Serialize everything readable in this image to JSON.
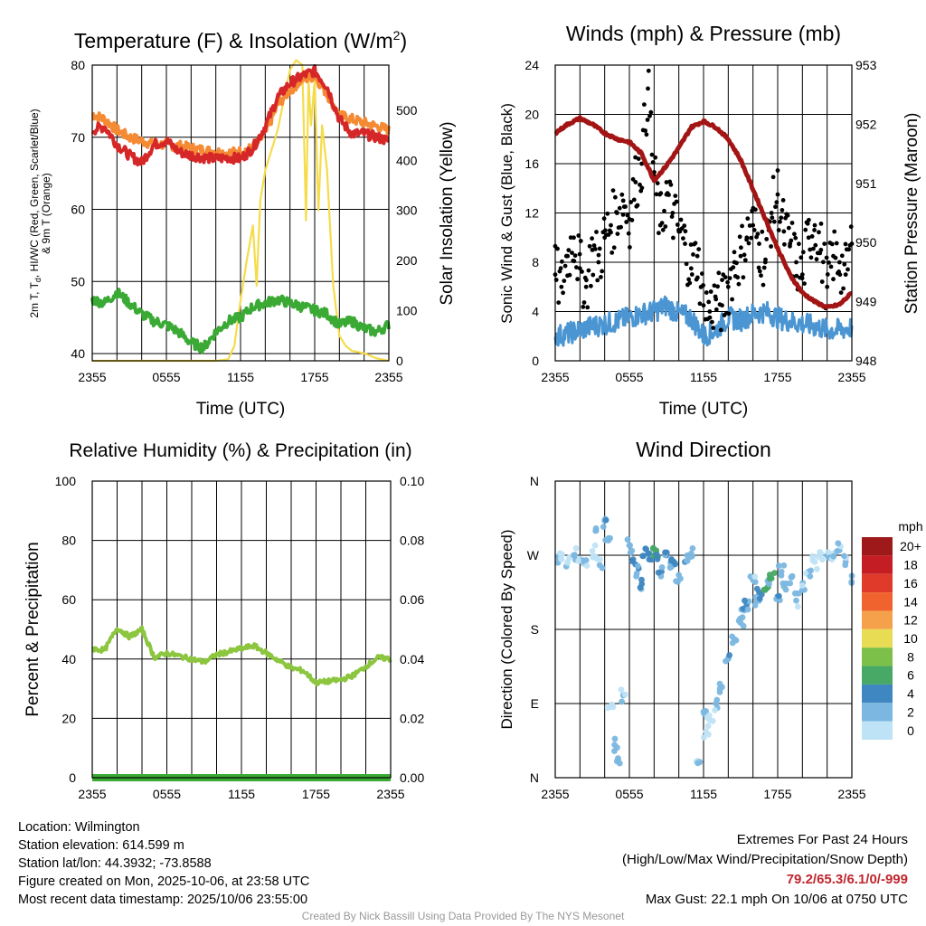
{
  "panels": {
    "temp": {
      "title": "Temperature (F) & Insolation (W/m²)",
      "title_main": "Temperature (F) & Insolation (W/m",
      "title_sup": "2",
      "title_end": ")",
      "ylabel_left": [
        "2m T, T",
        "d",
        ", HI/WC (Red, Green, Scarlet/Blue)",
        "& 9m T (Orange)"
      ],
      "ylabel_right": "Solar Insolation (Yellow)",
      "xlabel": "Time (UTC)"
    },
    "wind": {
      "title": "Winds (mph) & Pressure (mb)",
      "ylabel_left": "Sonic Wind & Gust (Blue, Black)",
      "ylabel_right": "Station Pressure (Maroon)",
      "xlabel": "Time (UTC)"
    },
    "rh": {
      "title": "Relative Humidity (%) & Precipitation (in)",
      "ylabel_left": "Percent & Precipitation"
    },
    "dir": {
      "title": "Wind Direction",
      "ylabel_left": "Direction (Colored By Speed)",
      "colorbar_title": "mph",
      "colorbar_labels": [
        "20+",
        "18",
        "16",
        "14",
        "12",
        "10",
        "8",
        "6",
        "4",
        "2",
        "0"
      ],
      "colorbar_colors": [
        "#9e1a1a",
        "#c41e24",
        "#e03a2b",
        "#f0632f",
        "#f5a04a",
        "#e8dc55",
        "#7cc04a",
        "#48a865",
        "#3f87c0",
        "#7bb7e0",
        "#bfe3f6"
      ]
    }
  },
  "x_ticks": [
    "2355",
    "0555",
    "1155",
    "1755",
    "2355"
  ],
  "chart_data": [
    {
      "type": "line",
      "title": "Temperature (F) & Insolation (W/m2)",
      "xlabel": "Time (UTC)",
      "x_ticks": [
        "2355",
        "0555",
        "1155",
        "1755",
        "2355"
      ],
      "ylim": [
        39,
        80
      ],
      "yticks": [
        40,
        50,
        60,
        70,
        80
      ],
      "y2lim": [
        0,
        590
      ],
      "y2ticks": [
        0,
        100,
        200,
        300,
        400,
        500
      ],
      "series": [
        {
          "name": "9m T (Orange)",
          "color": "#f58a34",
          "axis": "left",
          "t": [
            0,
            1,
            2,
            3,
            4,
            5,
            6,
            7,
            8,
            9,
            10,
            11,
            12,
            13,
            14,
            15,
            16,
            17,
            18,
            19,
            20,
            21,
            22,
            23,
            24
          ],
          "values": [
            73.2,
            72.5,
            71.0,
            70.0,
            69.5,
            69.0,
            69.0,
            68.8,
            68.5,
            68.2,
            68.0,
            67.8,
            68.0,
            68.5,
            70.5,
            74.5,
            76.5,
            78.0,
            78.5,
            76.0,
            73.0,
            72.5,
            72.0,
            71.5,
            71.0
          ]
        },
        {
          "name": "2m T (Red)",
          "color": "#d62728",
          "axis": "left",
          "t": [
            0,
            1,
            2,
            3,
            4,
            5,
            6,
            7,
            8,
            9,
            10,
            11,
            12,
            13,
            14,
            15,
            16,
            17,
            18,
            19,
            20,
            21,
            22,
            23,
            24
          ],
          "values": [
            71.0,
            71.5,
            69.0,
            67.5,
            66.5,
            69.0,
            69.5,
            68.0,
            67.5,
            67.2,
            67.0,
            67.2,
            67.0,
            68.5,
            71.5,
            75.5,
            77.5,
            78.5,
            79.2,
            77.0,
            72.5,
            70.5,
            70.5,
            70.0,
            69.5
          ]
        },
        {
          "name": "Td (Green)",
          "color": "#3aaa35",
          "axis": "left",
          "t": [
            0,
            1,
            2,
            3,
            4,
            5,
            6,
            7,
            8,
            9,
            10,
            11,
            12,
            13,
            14,
            15,
            16,
            17,
            18,
            19,
            20,
            21,
            22,
            23,
            24
          ],
          "values": [
            47.5,
            47.0,
            48.5,
            47.0,
            45.5,
            44.5,
            44.0,
            43.0,
            41.5,
            40.8,
            43.0,
            44.5,
            45.0,
            46.5,
            47.0,
            47.5,
            47.0,
            46.5,
            46.0,
            45.5,
            44.0,
            44.5,
            43.5,
            43.0,
            44.0
          ]
        },
        {
          "name": "Solar Insolation (Yellow)",
          "color": "#f5dc4a",
          "axis": "right",
          "t": [
            0,
            10,
            11,
            11.5,
            12,
            12.5,
            13,
            13.3,
            13.6,
            14,
            14.5,
            15,
            15.5,
            16,
            16.5,
            17,
            17.3,
            17.5,
            17.7,
            18,
            18.3,
            18.6,
            19,
            19.5,
            20,
            20.5,
            21,
            22,
            23,
            24
          ],
          "values": [
            0,
            0,
            3,
            30,
            120,
            200,
            270,
            150,
            320,
            380,
            420,
            460,
            520,
            580,
            600,
            590,
            280,
            560,
            470,
            560,
            300,
            470,
            380,
            150,
            50,
            30,
            20,
            15,
            5,
            0
          ]
        }
      ]
    },
    {
      "type": "line",
      "title": "Winds (mph) & Pressure (mb)",
      "xlabel": "Time (UTC)",
      "ylabel": "Sonic Wind & Gust (Blue, Black)",
      "ylim": [
        0,
        24
      ],
      "yticks": [
        0,
        4,
        8,
        12,
        16,
        20,
        24
      ],
      "y2label": "Station Pressure (Maroon)",
      "y2lim": [
        948,
        953
      ],
      "y2ticks": [
        948,
        949,
        950,
        951,
        952,
        953
      ],
      "series": [
        {
          "name": "Station Pressure (Maroon)",
          "color": "#a31515",
          "axis": "right",
          "t": [
            0,
            1,
            2,
            3,
            4,
            5,
            6,
            7,
            8,
            9,
            10,
            11,
            12,
            13,
            14,
            15,
            16,
            17,
            18,
            19,
            20,
            21,
            22,
            23,
            24
          ],
          "values": [
            951.85,
            952.0,
            952.1,
            952.0,
            951.85,
            951.75,
            951.7,
            951.5,
            951.05,
            951.3,
            951.6,
            951.95,
            952.05,
            951.95,
            951.75,
            951.4,
            950.9,
            950.4,
            949.9,
            949.45,
            949.15,
            949.0,
            948.9,
            948.95,
            949.15
          ]
        },
        {
          "name": "Sonic Wind (Blue)",
          "color": "#4b96d2",
          "axis": "left",
          "t": [
            0,
            1,
            2,
            3,
            4,
            5,
            6,
            7,
            8,
            9,
            10,
            11,
            12,
            13,
            14,
            15,
            16,
            17,
            18,
            19,
            20,
            21,
            22,
            23,
            24
          ],
          "values": [
            2.0,
            2.2,
            2.5,
            2.8,
            3.0,
            3.2,
            3.5,
            3.8,
            4.0,
            4.5,
            3.8,
            3.5,
            2.0,
            2.5,
            3.5,
            3.3,
            3.8,
            4.0,
            3.5,
            3.2,
            3.0,
            2.8,
            2.5,
            2.5,
            2.7
          ]
        },
        {
          "name": "Gust (Black)",
          "color": "#000000",
          "axis": "left",
          "t": [
            0,
            0.5,
            1,
            1.5,
            2,
            2.5,
            3,
            3.5,
            4,
            4.5,
            5,
            5.5,
            6,
            6.5,
            7,
            7.5,
            8,
            8.5,
            9,
            9.5,
            10,
            10.5,
            11,
            11.5,
            12,
            12.5,
            13,
            13.5,
            14,
            14.5,
            15,
            15.5,
            16,
            16.5,
            17,
            17.5,
            18,
            18.5,
            19,
            19.5,
            20,
            20.5,
            21,
            21.5,
            22,
            22.5,
            23,
            23.5,
            24
          ],
          "values": [
            7.0,
            6.0,
            8.5,
            10.0,
            7.5,
            6.0,
            9.0,
            8.0,
            10.0,
            11.0,
            12.0,
            13.0,
            11.5,
            14.5,
            16.0,
            22.1,
            15.0,
            11.0,
            13.5,
            12.0,
            10.5,
            9.5,
            7.5,
            8.5,
            4.5,
            4.0,
            5.0,
            4.5,
            6.0,
            8.0,
            8.5,
            10.0,
            11.0,
            9.5,
            8.0,
            12.0,
            13.5,
            10.5,
            9.5,
            8.0,
            7.0,
            10.0,
            11.0,
            9.0,
            6.0,
            8.5,
            8.0,
            7.0,
            9.5
          ]
        }
      ],
      "max_gust": 22.1
    },
    {
      "type": "line",
      "title": "Relative Humidity (%) & Precipitation (in)",
      "ylabel": "Percent & Precipitation",
      "ylim": [
        0,
        100
      ],
      "yticks": [
        0,
        20,
        40,
        60,
        80,
        100
      ],
      "y2lim": [
        0,
        0.1
      ],
      "y2ticks": [
        "0.00",
        "0.02",
        "0.04",
        "0.06",
        "0.08",
        "0.10"
      ],
      "series": [
        {
          "name": "Relative Humidity",
          "color": "#8cc63f",
          "axis": "left",
          "t": [
            0,
            1,
            2,
            3,
            4,
            5,
            6,
            7,
            8,
            9,
            10,
            11,
            12,
            13,
            14,
            15,
            16,
            17,
            18,
            19,
            20,
            21,
            22,
            23,
            24
          ],
          "values": [
            43.5,
            43.0,
            50.5,
            47.5,
            50.0,
            40.5,
            42.0,
            41.0,
            40.0,
            39.0,
            41.5,
            42.5,
            43.5,
            44.5,
            42.0,
            39.5,
            37.0,
            36.0,
            32.0,
            32.5,
            33.0,
            34.5,
            37.5,
            40.5,
            40.0
          ]
        },
        {
          "name": "Precipitation",
          "color": "#3aaa35",
          "axis": "right",
          "t": [
            0,
            24
          ],
          "values": [
            0,
            0
          ]
        }
      ]
    },
    {
      "type": "scatter",
      "title": "Wind Direction",
      "ylabel": "Direction (Colored By Speed)",
      "y_ticks": [
        "N",
        "E",
        "S",
        "W",
        "N"
      ],
      "ylim_deg": [
        0,
        360
      ],
      "color_scale": {
        "unit": "mph",
        "levels": [
          0,
          2,
          4,
          6,
          8,
          10,
          12,
          14,
          16,
          18,
          20
        ]
      },
      "series": [
        {
          "name": "Wind direction (deg) with speed (mph)",
          "t": [
            0.2,
            0.5,
            1.0,
            1.5,
            2.0,
            2.5,
            3.0,
            3.3,
            3.6,
            4.0,
            4.3,
            4.5,
            4.8,
            5.0,
            5.5,
            6.0,
            6.3,
            6.6,
            7.0,
            7.3,
            7.6,
            8.0,
            8.3,
            8.6,
            9.0,
            9.3,
            9.6,
            10.0,
            10.5,
            11.0,
            11.5,
            12.0,
            12.2,
            12.5,
            13.0,
            13.5,
            14.0,
            14.5,
            15.0,
            15.3,
            15.5,
            16.0,
            16.3,
            16.5,
            17.0,
            17.3,
            17.5,
            18.0,
            18.3,
            18.5,
            19.0,
            19.5,
            20.0,
            20.5,
            21.0,
            21.5,
            22.0,
            22.5,
            23.0,
            23.5,
            24.0
          ],
          "deg": [
            268,
            265,
            262,
            270,
            266,
            264,
            275,
            300,
            258,
            312,
            288,
            86,
            40,
            20,
            100,
            282,
            265,
            248,
            235,
            278,
            272,
            270,
            268,
            250,
            270,
            255,
            262,
            246,
            262,
            272,
            20,
            80,
            56,
            70,
            90,
            110,
            145,
            168,
            188,
            203,
            210,
            240,
            215,
            225,
            228,
            235,
            242,
            220,
            250,
            232,
            236,
            215,
            228,
            250,
            262,
            272,
            270,
            268,
            276,
            262,
            245
          ],
          "speed": [
            2,
            1.5,
            1.2,
            2.5,
            1.8,
            2.2,
            1.0,
            2.8,
            2.0,
            3.5,
            3.0,
            1.5,
            2.0,
            3.0,
            2.5,
            3.5,
            4.0,
            3.5,
            4.5,
            4.0,
            5.0,
            6.0,
            6.5,
            4.5,
            4.0,
            3.5,
            4.5,
            3.8,
            4.0,
            3.0,
            2.5,
            3.0,
            1.2,
            1.0,
            2.0,
            3.0,
            3.5,
            2.5,
            3.0,
            3.5,
            4.0,
            2.5,
            3.5,
            4.5,
            7.0,
            3.5,
            6.5,
            4.0,
            3.5,
            3.0,
            3.0,
            2.5,
            2.0,
            2.5,
            1.5,
            1.0,
            2.5,
            1.5,
            2.0,
            2.5,
            3.0
          ]
        }
      ]
    }
  ],
  "info": {
    "location": "Location: Wilmington",
    "elevation": "Station elevation: 614.599 m",
    "latlon": "Station lat/lon: 44.3932; -73.8588",
    "created": "Figure created on Mon, 2025-10-06, at 23:58 UTC",
    "recent": "Most recent data timestamp: 2025/10/06 23:55:00"
  },
  "extremes": {
    "heading": "Extremes For Past 24 Hours",
    "legend": "(High/Low/Max Wind/Precipitation/Snow Depth)",
    "values": "79.2/65.3/6.1/0/-999",
    "max_gust": "Max Gust: 22.1 mph On 10/06 at 0750 UTC"
  },
  "credit": "Created By Nick Bassill Using Data Provided By The NYS Mesonet",
  "colors": {
    "accent": "#c0272d",
    "grid": "#000000"
  }
}
